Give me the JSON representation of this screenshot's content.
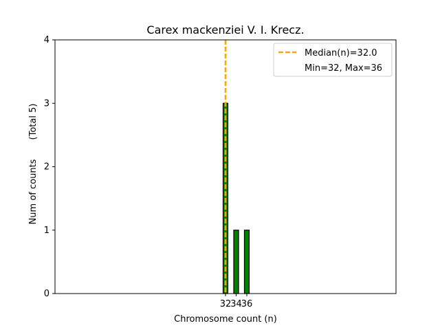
{
  "chart_data": {
    "type": "bar",
    "title": "Carex mackenziei V. I. Krecz.",
    "xlabel": "Chromosome count (n)",
    "ylabel": "Num of counts",
    "ylabel_note": "(Total 5)",
    "xlim": [
      0,
      64
    ],
    "ylim": [
      0,
      4
    ],
    "yticks": [
      0,
      1,
      2,
      3,
      4
    ],
    "xticks": [
      32,
      34,
      36
    ],
    "bars": [
      {
        "x": 32,
        "value": 3
      },
      {
        "x": 34,
        "value": 1
      },
      {
        "x": 36,
        "value": 1
      }
    ],
    "median": 32.0,
    "legend": {
      "position": "upper right",
      "entries": [
        "Median(n)=32.0",
        "Min=32, Max=36"
      ]
    },
    "colors": {
      "bar_fill": "#008000",
      "bar_edge": "#000000",
      "median_line": "#FFA500"
    }
  }
}
